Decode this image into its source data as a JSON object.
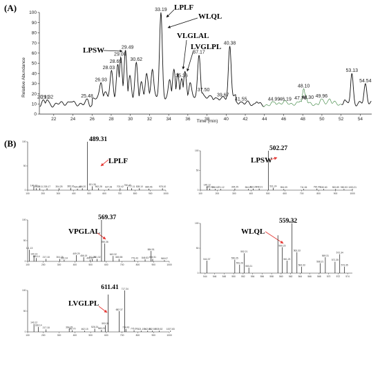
{
  "chart_data": [
    {
      "type": "line",
      "panel": "(A)",
      "xlabel": "Time (min)",
      "ylabel": "Relative Abundance",
      "xlim": [
        20.5,
        55.2
      ],
      "ylim": [
        0,
        100
      ],
      "x_ticks": [
        22,
        24,
        26,
        28,
        30,
        32,
        34,
        36,
        38,
        40,
        42,
        44,
        46,
        48,
        50,
        52,
        54
      ],
      "y_ticks": [
        0,
        10,
        20,
        30,
        40,
        50,
        60,
        70,
        80,
        90,
        100
      ],
      "baseline_level": 10,
      "peaks": [
        {
          "rt": 20.91,
          "label": "20.91",
          "height": 14
        },
        {
          "rt": 21.32,
          "label": "21.32",
          "height": 14
        },
        {
          "rt": 25.48,
          "label": "25.48",
          "height": 15
        },
        {
          "rt": 26.93,
          "label": "26.93",
          "height": 31
        },
        {
          "rt": 28.03,
          "label": "28.03",
          "height": 43
        },
        {
          "rt": 28.69,
          "label": "28.69",
          "height": 49
        },
        {
          "rt": 29.0,
          "label": "29.00",
          "height": 56
        },
        {
          "rt": 29.49,
          "label": "29.49",
          "height": 63
        },
        {
          "rt": 30.62,
          "label": "30.62",
          "height": 51
        },
        {
          "rt": 33.19,
          "label": "33.19",
          "height": 100
        },
        {
          "rt": 35.36,
          "label": "35.36",
          "height": 35
        },
        {
          "rt": 37.17,
          "label": "37.17",
          "height": 58
        },
        {
          "rt": 37.5,
          "label": "37.50",
          "height": 21
        },
        {
          "rt": 39.67,
          "label": "39.67",
          "height": 16
        },
        {
          "rt": 40.38,
          "label": "40.38",
          "height": 67
        },
        {
          "rt": 41.55,
          "label": "41.55",
          "height": 12
        },
        {
          "rt": 44.99,
          "label": "44.99",
          "height": 12
        },
        {
          "rt": 46.19,
          "label": "46.19",
          "height": 12
        },
        {
          "rt": 47.76,
          "label": "47.76",
          "height": 13
        },
        {
          "rt": 48.1,
          "label": "48.10",
          "height": 25
        },
        {
          "rt": 48.3,
          "label": "48.30",
          "height": 19
        },
        {
          "rt": 49.96,
          "label": "49.96",
          "height": 15
        },
        {
          "rt": 53.13,
          "label": "53.13",
          "height": 40
        },
        {
          "rt": 54.54,
          "label": "54.54",
          "height": 30
        }
      ],
      "minor_peaks": [
        {
          "rt": 23.8,
          "height": 12
        },
        {
          "rt": 27.4,
          "height": 22
        },
        {
          "rt": 29.95,
          "height": 38
        },
        {
          "rt": 31.15,
          "height": 32
        },
        {
          "rt": 31.7,
          "height": 40
        },
        {
          "rt": 32.3,
          "height": 44
        },
        {
          "rt": 34.1,
          "height": 34
        },
        {
          "rt": 34.55,
          "height": 44
        },
        {
          "rt": 34.95,
          "height": 40
        },
        {
          "rt": 35.7,
          "height": 42
        },
        {
          "rt": 36.25,
          "height": 31
        },
        {
          "rt": 38.3,
          "height": 18
        },
        {
          "rt": 38.9,
          "height": 16
        },
        {
          "rt": 43.2,
          "height": 12
        },
        {
          "rt": 50.8,
          "height": 15
        },
        {
          "rt": 52.4,
          "height": 14
        }
      ],
      "annotations": [
        "LPSW",
        "LPLF",
        "WLQL",
        "VLGLAL",
        "LVGLPL"
      ]
    },
    {
      "type": "bar",
      "panel": "(B)",
      "peptide": "LPLF",
      "precursor_label": "489.31",
      "xlim": [
        100,
        1000
      ],
      "ylim": [
        0,
        100
      ],
      "x_ticks": [
        100,
        200,
        300,
        400,
        500,
        600,
        700,
        800,
        900,
        1000
      ],
      "y_ticks": [
        0,
        50,
        100
      ],
      "peaks": [
        {
          "mz": 140.12,
          "label": "140.12",
          "intensity": 6
        },
        {
          "mz": 157.12,
          "label": "157.12",
          "intensity": 4
        },
        {
          "mz": 178.11,
          "label": "178.11",
          "intensity": 4
        },
        {
          "mz": 226.17,
          "label": "226.17",
          "intensity": 4
        },
        {
          "mz": 304.25,
          "label": "304.25",
          "intensity": 4
        },
        {
          "mz": 380.16,
          "label": "380.16",
          "intensity": 5
        },
        {
          "mz": 424.24,
          "label": "424.24",
          "intensity": 3
        },
        {
          "mz": 456.2,
          "label": "456.20",
          "intensity": 4
        },
        {
          "mz": 489.31,
          "label": "489.31",
          "intensity": 100
        },
        {
          "mz": 521.35,
          "label": "521.35",
          "intensity": 8
        },
        {
          "mz": 562.28,
          "label": "562.28",
          "intensity": 4
        },
        {
          "mz": 627.28,
          "label": "627.28",
          "intensity": 3
        },
        {
          "mz": 702.42,
          "label": "702.42",
          "intensity": 4
        },
        {
          "mz": 750.4,
          "label": "750.40",
          "intensity": 7
        },
        {
          "mz": 777.11,
          "label": "777.11",
          "intensity": 4
        },
        {
          "mz": 828.1,
          "label": "828.10",
          "intensity": 4
        },
        {
          "mz": 889.46,
          "label": "889.46",
          "intensity": 3
        },
        {
          "mz": 978.1,
          "label": "978.10",
          "intensity": 4
        }
      ]
    },
    {
      "type": "bar",
      "panel": "(B)",
      "peptide": "LPSW",
      "precursor_label": "502.27",
      "xlim": [
        100,
        1000
      ],
      "ylim": [
        0,
        100
      ],
      "x_ticks": [
        100,
        200,
        300,
        400,
        500,
        600,
        700,
        800,
        900,
        1000
      ],
      "y_ticks": [
        0,
        50,
        100
      ],
      "peaks": [
        {
          "mz": 140.12,
          "label": "140.12",
          "intensity": 9
        },
        {
          "mz": 155.1,
          "label": "155.10",
          "intensity": 4
        },
        {
          "mz": 188.17,
          "label": "188.17",
          "intensity": 3
        },
        {
          "mz": 221.12,
          "label": "221.12",
          "intensity": 3
        },
        {
          "mz": 304.25,
          "label": "304.25",
          "intensity": 4
        },
        {
          "mz": 384.29,
          "label": "384.29",
          "intensity": 3
        },
        {
          "mz": 413.21,
          "label": "413.21",
          "intensity": 4
        },
        {
          "mz": 448.21,
          "label": "448.21",
          "intensity": 4
        },
        {
          "mz": 502.27,
          "label": "502.27",
          "intensity": 100
        },
        {
          "mz": 531.24,
          "label": "531.24",
          "intensity": 6
        },
        {
          "mz": 594.09,
          "label": "594.09",
          "intensity": 3
        },
        {
          "mz": 711.06,
          "label": "711.06",
          "intensity": 3
        },
        {
          "mz": 790.4,
          "label": "790.40",
          "intensity": 4
        },
        {
          "mz": 830.6,
          "label": "830.60",
          "intensity": 3
        },
        {
          "mz": 900.89,
          "label": "900.89",
          "intensity": 3
        },
        {
          "mz": 950.53,
          "label": "950.53",
          "intensity": 3
        },
        {
          "mz": 1000.21,
          "label": "1000.21",
          "intensity": 3
        }
      ]
    },
    {
      "type": "bar",
      "panel": "(B)",
      "peptide": "VPGLAL",
      "precursor_label": "569.37",
      "xlim": [
        100,
        1000
      ],
      "ylim": [
        0,
        100
      ],
      "x_ticks": [
        100,
        200,
        300,
        400,
        500,
        600,
        700,
        800,
        900,
        1000
      ],
      "y_ticks": [
        0,
        50,
        100
      ],
      "peaks": [
        {
          "mz": 111.13,
          "label": "111.13",
          "intensity": 28
        },
        {
          "mz": 140.13,
          "label": "140.13",
          "intensity": 14
        },
        {
          "mz": 155.14,
          "label": "155.14",
          "intensity": 8
        },
        {
          "mz": 217.18,
          "label": "217.18",
          "intensity": 6
        },
        {
          "mz": 304.25,
          "label": "304.25",
          "intensity": 6
        },
        {
          "mz": 332.24,
          "label": "332.24",
          "intensity": 4
        },
        {
          "mz": 409.29,
          "label": "409.29",
          "intensity": 15
        },
        {
          "mz": 456.19,
          "label": "456.19",
          "intensity": 10
        },
        {
          "mz": 496.27,
          "label": "496.27",
          "intensity": 4
        },
        {
          "mz": 511.28,
          "label": "511.28",
          "intensity": 6
        },
        {
          "mz": 541.32,
          "label": "541.32",
          "intensity": 6
        },
        {
          "mz": 569.37,
          "label": "569.37",
          "intensity": 100
        },
        {
          "mz": 590.36,
          "label": "590.36",
          "intensity": 43
        },
        {
          "mz": 643.32,
          "label": "643.32",
          "intensity": 13
        },
        {
          "mz": 680.55,
          "label": "680.55",
          "intensity": 6
        },
        {
          "mz": 779.43,
          "label": "779.43",
          "intensity": 4
        },
        {
          "mz": 846.53,
          "label": "846.53",
          "intensity": 5
        },
        {
          "mz": 884.51,
          "label": "884.51",
          "intensity": 25
        },
        {
          "mz": 894.51,
          "label": "894.51",
          "intensity": 6
        },
        {
          "mz": 969.07,
          "label": "969.07",
          "intensity": 3
        }
      ]
    },
    {
      "type": "bar",
      "panel": "(B)",
      "peptide": "WLQL",
      "precursor_label": "559.32",
      "xlim": [
        543,
        575
      ],
      "ylim": [
        0,
        100
      ],
      "x_ticks": [
        544,
        546,
        548,
        550,
        552,
        554,
        556,
        558,
        560,
        562,
        564,
        566,
        568,
        570,
        572,
        574
      ],
      "y_ticks": [
        0,
        50,
        100
      ],
      "peaks": [
        {
          "mz": 544.37,
          "label": "544.37",
          "intensity": 25
        },
        {
          "mz": 550.25,
          "label": "550.25",
          "intensity": 27
        },
        {
          "mz": 551.26,
          "label": "551.26",
          "intensity": 17
        },
        {
          "mz": 552.21,
          "label": "552.21",
          "intensity": 40
        },
        {
          "mz": 553.21,
          "label": "553.21",
          "intensity": 11
        },
        {
          "mz": 559.32,
          "label": "559.32",
          "intensity": 76
        },
        {
          "mz": 560.23,
          "label": "560.23",
          "intensity": 52
        },
        {
          "mz": 561.23,
          "label": "561.23",
          "intensity": 25
        },
        {
          "mz": 562.3,
          "label": "562.30",
          "intensity": 100
        },
        {
          "mz": 563.33,
          "label": "563.33",
          "intensity": 42
        },
        {
          "mz": 564.33,
          "label": "564.33",
          "intensity": 13
        },
        {
          "mz": 568.21,
          "label": "568.21",
          "intensity": 20
        },
        {
          "mz": 569.31,
          "label": "569.31",
          "intensity": 32
        },
        {
          "mz": 571.35,
          "label": "571.35",
          "intensity": 23
        },
        {
          "mz": 572.34,
          "label": "572.34",
          "intensity": 38
        },
        {
          "mz": 573.35,
          "label": "573.35",
          "intensity": 13
        }
      ]
    },
    {
      "type": "bar",
      "panel": "(B)",
      "peptide": "LVGLPL",
      "precursor_label": "611.41",
      "xlim": [
        100,
        1000
      ],
      "ylim": [
        0,
        100
      ],
      "x_ticks": [
        100,
        200,
        300,
        400,
        500,
        600,
        700,
        800,
        900,
        1000
      ],
      "y_ticks": [
        0,
        50,
        100
      ],
      "peaks": [
        {
          "mz": 140.12,
          "label": "140.12",
          "intensity": 19
        },
        {
          "mz": 168.14,
          "label": "168.14",
          "intensity": 12
        },
        {
          "mz": 217.18,
          "label": "217.18",
          "intensity": 6
        },
        {
          "mz": 364.25,
          "label": "364.25",
          "intensity": 7
        },
        {
          "mz": 382.7,
          "label": "382.70",
          "intensity": 4
        },
        {
          "mz": 462.15,
          "label": "462.15",
          "intensity": 3
        },
        {
          "mz": 526.24,
          "label": "526.24",
          "intensity": 8
        },
        {
          "mz": 569.23,
          "label": "569.23",
          "intensity": 5
        },
        {
          "mz": 593.28,
          "label": "593.28",
          "intensity": 16
        },
        {
          "mz": 611.41,
          "label": "611.41",
          "intensity": 90
        },
        {
          "mz": 682.37,
          "label": "682.37",
          "intensity": 50
        },
        {
          "mz": 717.34,
          "label": "717.34",
          "intensity": 100
        },
        {
          "mz": 724.43,
          "label": "724.43",
          "intensity": 7
        },
        {
          "mz": 776.3,
          "label": "776.30",
          "intensity": 4
        },
        {
          "mz": 821.19,
          "label": "821.19",
          "intensity": 3
        },
        {
          "mz": 862.81,
          "label": "862.81",
          "intensity": 3
        },
        {
          "mz": 892.58,
          "label": "892.58",
          "intensity": 3
        },
        {
          "mz": 935.52,
          "label": "935.52",
          "intensity": 3
        },
        {
          "mz": 1007.83,
          "label": "1007.83",
          "intensity": 3
        }
      ]
    }
  ]
}
